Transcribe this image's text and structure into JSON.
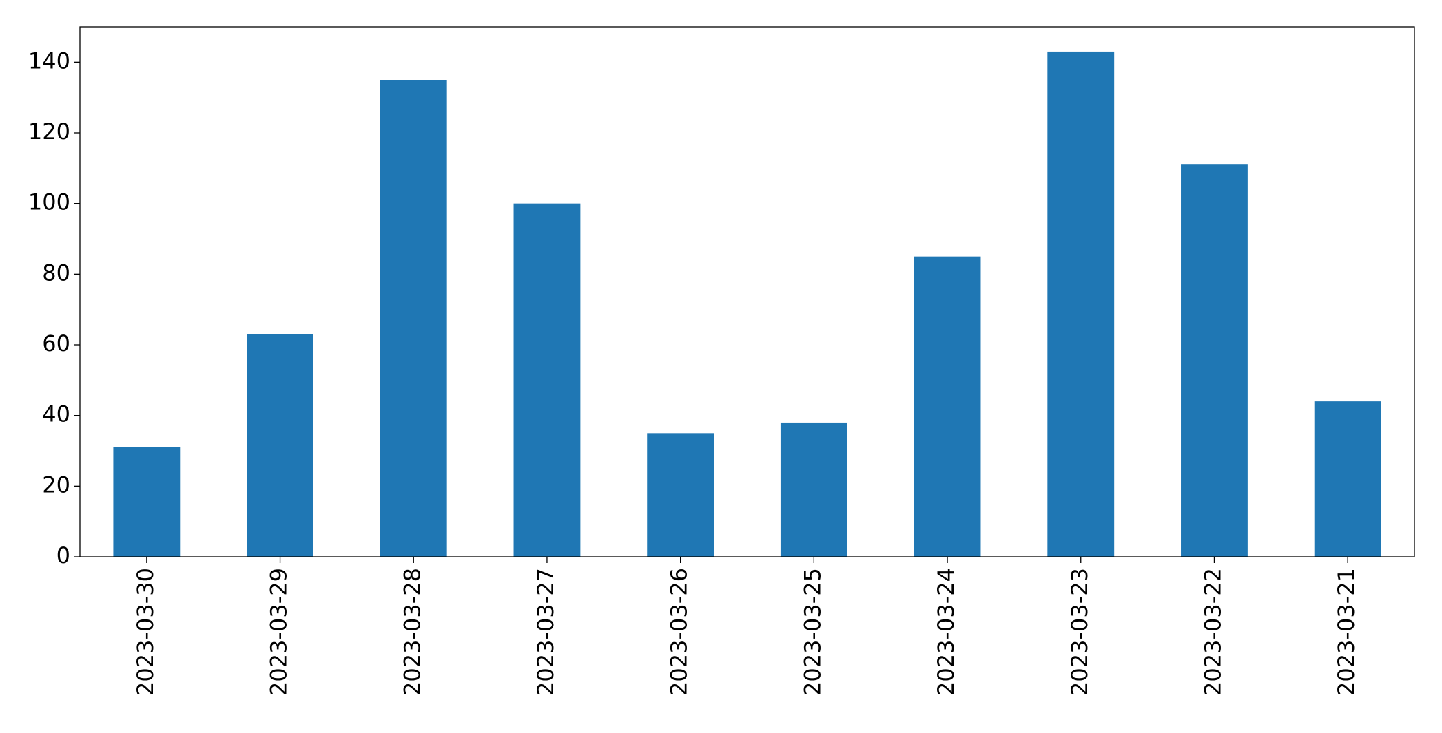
{
  "chart_data": {
    "type": "bar",
    "categories": [
      "2023-03-30",
      "2023-03-29",
      "2023-03-28",
      "2023-03-27",
      "2023-03-26",
      "2023-03-25",
      "2023-03-24",
      "2023-03-23",
      "2023-03-22",
      "2023-03-21"
    ],
    "values": [
      31,
      63,
      135,
      100,
      35,
      38,
      85,
      143,
      111,
      44
    ],
    "color": "#1f77b4",
    "ylim": [
      0,
      150
    ],
    "yticks": [
      0,
      20,
      40,
      60,
      80,
      100,
      120,
      140
    ],
    "grid": false
  }
}
